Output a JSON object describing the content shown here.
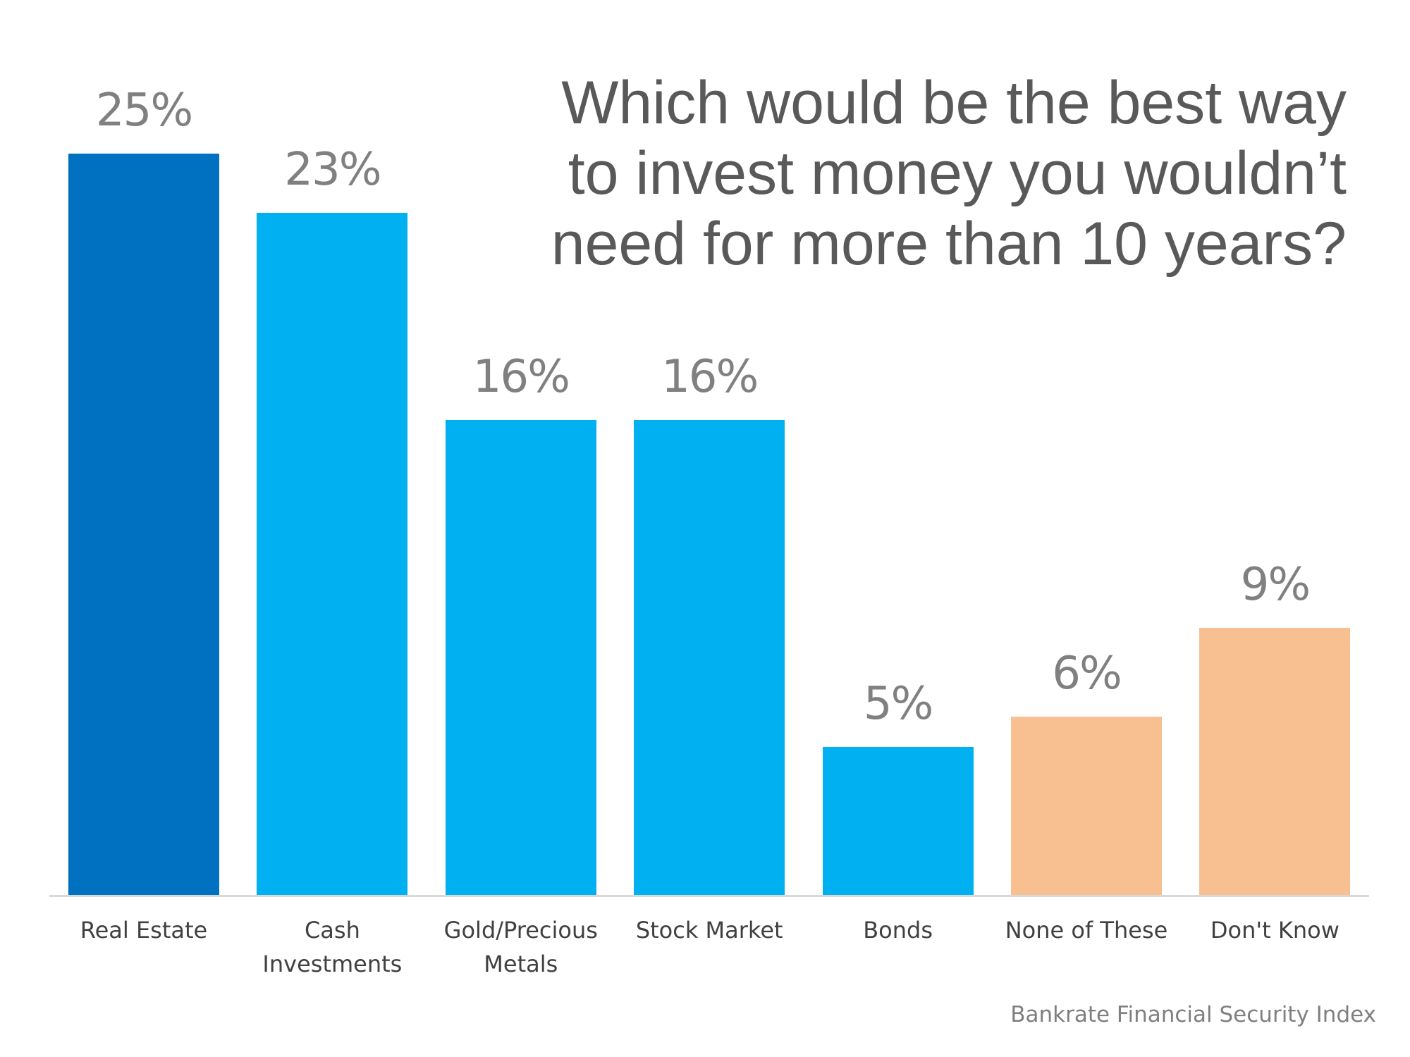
{
  "title_lines": [
    "Which would be the best way",
    "to invest money you wouldn’t",
    "need for more than 10 years?"
  ],
  "source": "Bankrate Financial Security Index",
  "colors": {
    "dark_blue": "#0070c0",
    "light_blue": "#00b0f0",
    "peach": "#f8c090",
    "title": "#595959",
    "value_label": "#808080",
    "category_label": "#404040",
    "axis": "#d9d9d9"
  },
  "chart_data": {
    "type": "bar",
    "title": "Which would be the best way to invest money you wouldn’t need for more than 10 years?",
    "categories": [
      "Real Estate",
      "Cash Investments",
      "Gold/Precious Metals",
      "Stock Market",
      "Bonds",
      "None of These",
      "Don't Know"
    ],
    "values": [
      25,
      23,
      16,
      16,
      5,
      6,
      9
    ],
    "value_labels": [
      "25%",
      "23%",
      "16%",
      "16%",
      "5%",
      "6%",
      "9%"
    ],
    "category_lines": [
      [
        "Real Estate"
      ],
      [
        "Cash",
        "Investments"
      ],
      [
        "Gold/Precious",
        "Metals"
      ],
      [
        "Stock Market"
      ],
      [
        "Bonds"
      ],
      [
        "None of These"
      ],
      [
        "Don't Know"
      ]
    ],
    "bar_colors": [
      "#0070c0",
      "#00b0f0",
      "#00b0f0",
      "#00b0f0",
      "#00b0f0",
      "#f8c090",
      "#f8c090"
    ],
    "xlabel": "",
    "ylabel": "",
    "ylim": [
      0,
      28
    ],
    "grid": false,
    "legend": "none",
    "source": "Bankrate Financial Security Index"
  }
}
